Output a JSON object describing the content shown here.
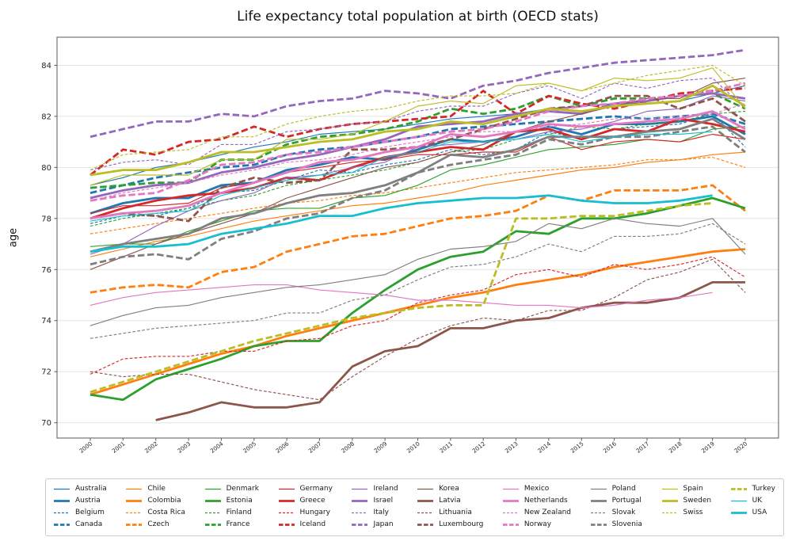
{
  "figure": {
    "title": "Life expectancy total population at birth (OECD stats)",
    "background": "#ffffff",
    "grid_color": "#e4e4e4",
    "spine_color": "#5a5a5a",
    "text_color": "#262626"
  },
  "chart_data": {
    "type": "line",
    "title": "Life expectancy total population at birth (OECD stats)",
    "xlabel": "",
    "ylabel": "age",
    "x": [
      2000,
      2001,
      2002,
      2003,
      2004,
      2005,
      2006,
      2007,
      2008,
      2009,
      2010,
      2011,
      2012,
      2013,
      2014,
      2015,
      2016,
      2017,
      2018,
      2019,
      2020
    ],
    "yticks": [
      70,
      72,
      74,
      76,
      78,
      80,
      82,
      84
    ],
    "ylim": [
      69.4,
      85.1
    ],
    "grid": "horizontal",
    "legend_position": "bottom",
    "legend_columns": [
      4,
      4,
      4,
      4,
      4,
      4,
      4,
      4,
      3,
      3
    ],
    "series": [
      {
        "name": "Australia",
        "color": "#1f77b4",
        "weight": "thin",
        "dash": "solid",
        "values": [
          79.3,
          79.6,
          80.0,
          80.2,
          80.5,
          80.8,
          81.0,
          81.3,
          81.4,
          81.5,
          81.7,
          81.9,
          82.0,
          82.1,
          82.3,
          82.4,
          82.5,
          82.5,
          82.6,
          82.9,
          83.2
        ]
      },
      {
        "name": "Austria",
        "color": "#1f77b4",
        "weight": "thick",
        "dash": "solid",
        "values": [
          78.2,
          78.6,
          78.8,
          78.8,
          79.3,
          79.4,
          79.9,
          80.1,
          80.4,
          80.3,
          80.7,
          81.1,
          81.0,
          81.2,
          81.6,
          81.3,
          81.7,
          81.7,
          81.8,
          82.0,
          81.3
        ]
      },
      {
        "name": "Belgium",
        "color": "#1f77b4",
        "weight": "thin",
        "dash": "dashed",
        "values": [
          77.8,
          78.1,
          78.1,
          78.4,
          79.0,
          79.1,
          79.5,
          79.9,
          79.8,
          80.1,
          80.3,
          80.7,
          80.5,
          80.7,
          81.4,
          81.1,
          81.5,
          81.6,
          81.7,
          82.1,
          80.8
        ]
      },
      {
        "name": "Canada",
        "color": "#1f77b4",
        "weight": "thick",
        "dash": "dashed",
        "values": [
          79.0,
          79.3,
          79.6,
          79.8,
          80.0,
          80.1,
          80.5,
          80.7,
          80.8,
          81.0,
          81.2,
          81.5,
          81.6,
          81.7,
          81.8,
          81.9,
          82.0,
          81.9,
          82.0,
          82.1,
          81.7
        ]
      },
      {
        "name": "Chile",
        "color": "#ff7f0e",
        "weight": "thin",
        "dash": "solid",
        "values": [
          76.5,
          76.8,
          77.1,
          77.3,
          77.6,
          77.9,
          78.1,
          78.3,
          78.5,
          78.6,
          78.8,
          79.0,
          79.3,
          79.5,
          79.7,
          79.9,
          80.0,
          80.2,
          80.3,
          80.5,
          80.6
        ]
      },
      {
        "name": "Colombia",
        "color": "#ff7f0e",
        "weight": "thick",
        "dash": "solid",
        "values": [
          71.1,
          71.5,
          71.9,
          72.3,
          72.7,
          73.0,
          73.4,
          73.7,
          74.0,
          74.3,
          74.6,
          74.9,
          75.1,
          75.4,
          75.6,
          75.8,
          76.1,
          76.3,
          76.5,
          76.7,
          76.8
        ]
      },
      {
        "name": "Costa Rica",
        "color": "#ff7f0e",
        "weight": "thin",
        "dash": "dashed",
        "values": [
          77.4,
          77.6,
          77.8,
          78.0,
          78.2,
          78.4,
          78.6,
          78.7,
          78.9,
          79.0,
          79.2,
          79.4,
          79.6,
          79.8,
          79.9,
          80.0,
          80.1,
          80.3,
          80.3,
          80.4,
          80.0
        ]
      },
      {
        "name": "Czech",
        "color": "#ff7f0e",
        "weight": "thick",
        "dash": "dashed",
        "values": [
          75.1,
          75.3,
          75.4,
          75.3,
          75.9,
          76.1,
          76.7,
          77.0,
          77.3,
          77.4,
          77.7,
          78.0,
          78.1,
          78.3,
          78.9,
          78.7,
          79.1,
          79.1,
          79.1,
          79.3,
          78.3
        ]
      },
      {
        "name": "Denmark",
        "color": "#2ca02c",
        "weight": "thin",
        "dash": "solid",
        "values": [
          76.9,
          77.0,
          77.0,
          77.5,
          77.9,
          78.3,
          78.4,
          78.4,
          78.8,
          78.9,
          79.3,
          79.9,
          80.1,
          80.4,
          80.7,
          80.8,
          80.9,
          81.1,
          81.0,
          81.5,
          81.6
        ]
      },
      {
        "name": "Estonia",
        "color": "#2ca02c",
        "weight": "thick",
        "dash": "solid",
        "values": [
          71.1,
          70.9,
          71.7,
          72.1,
          72.5,
          73.0,
          73.2,
          73.2,
          74.3,
          75.2,
          76.0,
          76.5,
          76.7,
          77.5,
          77.4,
          78.0,
          78.0,
          78.2,
          78.5,
          78.8,
          78.4
        ]
      },
      {
        "name": "Finland",
        "color": "#2ca02c",
        "weight": "thin",
        "dash": "dashed",
        "values": [
          77.7,
          78.0,
          78.2,
          78.4,
          78.7,
          78.9,
          79.3,
          79.5,
          79.7,
          79.9,
          80.2,
          80.6,
          80.7,
          81.1,
          81.3,
          81.6,
          81.5,
          81.7,
          81.8,
          82.1,
          82.2
        ]
      },
      {
        "name": "France",
        "color": "#2ca02c",
        "weight": "thick",
        "dash": "dashed",
        "values": [
          79.2,
          79.3,
          79.4,
          79.4,
          80.3,
          80.3,
          80.9,
          81.2,
          81.3,
          81.5,
          81.8,
          82.3,
          82.1,
          82.3,
          82.8,
          82.4,
          82.7,
          82.7,
          82.8,
          82.9,
          82.3
        ]
      },
      {
        "name": "Germany",
        "color": "#d62728",
        "weight": "thin",
        "dash": "solid",
        "values": [
          78.2,
          78.5,
          78.5,
          78.6,
          79.2,
          79.4,
          79.8,
          80.0,
          80.2,
          80.3,
          80.5,
          80.5,
          80.6,
          80.6,
          81.2,
          80.7,
          81.0,
          81.1,
          81.0,
          81.3,
          81.1
        ]
      },
      {
        "name": "Greece",
        "color": "#d62728",
        "weight": "thick",
        "dash": "solid",
        "values": [
          78.0,
          78.4,
          78.7,
          78.9,
          79.0,
          79.2,
          79.6,
          79.5,
          80.0,
          80.4,
          80.6,
          80.8,
          80.7,
          81.4,
          81.5,
          81.1,
          81.5,
          81.4,
          81.9,
          81.7,
          81.4
        ]
      },
      {
        "name": "Hungary",
        "color": "#d62728",
        "weight": "thin",
        "dash": "dashed",
        "values": [
          71.9,
          72.5,
          72.6,
          72.6,
          72.8,
          72.8,
          73.2,
          73.3,
          73.8,
          74.0,
          74.7,
          75.0,
          75.2,
          75.8,
          76.0,
          75.7,
          76.2,
          76.0,
          76.2,
          76.5,
          75.7
        ]
      },
      {
        "name": "Iceland",
        "color": "#d62728",
        "weight": "thick",
        "dash": "dashed",
        "values": [
          79.7,
          80.7,
          80.5,
          81.0,
          81.1,
          81.6,
          81.2,
          81.5,
          81.7,
          81.8,
          81.9,
          82.0,
          83.0,
          82.1,
          82.8,
          82.5,
          82.3,
          82.6,
          82.9,
          83.0,
          83.1
        ]
      },
      {
        "name": "Ireland",
        "color": "#9467bd",
        "weight": "thin",
        "dash": "solid",
        "values": [
          76.6,
          77.0,
          77.7,
          78.3,
          78.7,
          79.0,
          79.6,
          79.7,
          80.0,
          80.2,
          80.8,
          80.9,
          81.0,
          81.1,
          81.4,
          81.5,
          81.8,
          82.2,
          82.3,
          82.8,
          82.6
        ]
      },
      {
        "name": "Israel",
        "color": "#9467bd",
        "weight": "thick",
        "dash": "solid",
        "values": [
          78.8,
          79.1,
          79.3,
          79.4,
          79.8,
          80.0,
          80.3,
          80.5,
          80.8,
          81.1,
          81.6,
          81.7,
          81.8,
          82.1,
          82.2,
          82.1,
          82.5,
          82.6,
          82.8,
          82.9,
          82.7
        ]
      },
      {
        "name": "Italy",
        "color": "#9467bd",
        "weight": "thin",
        "dash": "dashed",
        "values": [
          79.9,
          80.2,
          80.3,
          80.1,
          80.9,
          80.9,
          81.4,
          81.5,
          81.7,
          81.8,
          82.2,
          82.4,
          82.4,
          82.9,
          83.2,
          82.7,
          83.3,
          83.1,
          83.4,
          83.5,
          82.3
        ]
      },
      {
        "name": "Japan",
        "color": "#9467bd",
        "weight": "thick",
        "dash": "dashed",
        "values": [
          81.2,
          81.5,
          81.8,
          81.8,
          82.1,
          82.0,
          82.4,
          82.6,
          82.7,
          83.0,
          82.9,
          82.7,
          83.2,
          83.4,
          83.7,
          83.9,
          84.1,
          84.2,
          84.3,
          84.4,
          84.6
        ]
      },
      {
        "name": "Korea",
        "color": "#8c564b",
        "weight": "thin",
        "dash": "solid",
        "values": [
          76.0,
          76.5,
          77.0,
          77.4,
          77.8,
          78.2,
          78.8,
          79.2,
          79.6,
          80.0,
          80.2,
          80.6,
          80.9,
          81.4,
          81.8,
          82.1,
          82.4,
          82.7,
          82.7,
          83.3,
          83.5
        ]
      },
      {
        "name": "Latvia",
        "color": "#8c564b",
        "weight": "thick",
        "dash": "solid",
        "values": [
          null,
          null,
          70.1,
          70.4,
          70.8,
          70.6,
          70.6,
          70.8,
          72.2,
          72.8,
          73.0,
          73.7,
          73.7,
          74.0,
          74.1,
          74.5,
          74.7,
          74.7,
          74.9,
          75.5,
          75.5
        ]
      },
      {
        "name": "Lithuania",
        "color": "#8c564b",
        "weight": "thin",
        "dash": "dashed",
        "values": [
          72.0,
          71.8,
          71.9,
          71.9,
          71.6,
          71.3,
          71.1,
          70.9,
          71.8,
          72.6,
          73.3,
          73.8,
          74.1,
          74.0,
          74.4,
          74.4,
          74.9,
          75.6,
          75.9,
          76.4,
          75.1
        ]
      },
      {
        "name": "Luxembourg",
        "color": "#8c564b",
        "weight": "thick",
        "dash": "dashed",
        "values": [
          78.0,
          78.2,
          78.1,
          77.9,
          79.2,
          79.6,
          79.4,
          79.5,
          80.7,
          80.7,
          80.8,
          81.1,
          81.5,
          81.9,
          82.3,
          82.4,
          82.8,
          82.8,
          82.3,
          82.7,
          81.8
        ]
      },
      {
        "name": "Mexico",
        "color": "#e377c2",
        "weight": "thin",
        "dash": "solid",
        "values": [
          74.6,
          74.9,
          75.1,
          75.2,
          75.3,
          75.4,
          75.4,
          75.2,
          75.1,
          75.0,
          74.8,
          74.8,
          74.7,
          74.6,
          74.6,
          74.5,
          74.6,
          74.8,
          74.9,
          75.1,
          null
        ]
      },
      {
        "name": "Netherlands",
        "color": "#e377c2",
        "weight": "thick",
        "dash": "solid",
        "values": [
          78.0,
          78.2,
          78.3,
          78.5,
          79.0,
          79.4,
          79.8,
          80.2,
          80.3,
          80.6,
          80.8,
          81.3,
          81.2,
          81.4,
          81.7,
          81.6,
          81.7,
          81.8,
          81.9,
          82.2,
          81.5
        ]
      },
      {
        "name": "New Zealand",
        "color": "#e377c2",
        "weight": "thin",
        "dash": "dashed",
        "values": [
          78.7,
          79.0,
          79.2,
          79.4,
          79.7,
          79.9,
          80.2,
          80.3,
          80.5,
          80.8,
          81.0,
          81.2,
          81.4,
          81.4,
          81.6,
          81.7,
          81.9,
          81.9,
          82.0,
          82.1,
          82.5
        ]
      },
      {
        "name": "Norway",
        "color": "#e377c2",
        "weight": "thick",
        "dash": "dashed",
        "values": [
          78.7,
          78.9,
          79.0,
          79.5,
          80.1,
          80.2,
          80.5,
          80.6,
          80.8,
          81.0,
          81.2,
          81.4,
          81.5,
          81.8,
          82.2,
          82.4,
          82.5,
          82.7,
          82.8,
          83.0,
          83.3
        ]
      },
      {
        "name": "Poland",
        "color": "#7f7f7f",
        "weight": "thin",
        "dash": "solid",
        "values": [
          73.8,
          74.2,
          74.5,
          74.6,
          74.9,
          75.1,
          75.3,
          75.4,
          75.6,
          75.8,
          76.4,
          76.8,
          76.9,
          77.1,
          77.8,
          77.6,
          78.0,
          77.8,
          77.7,
          78.0,
          76.6
        ]
      },
      {
        "name": "Portugal",
        "color": "#7f7f7f",
        "weight": "thick",
        "dash": "solid",
        "values": [
          76.7,
          77.0,
          77.2,
          77.4,
          78.0,
          78.2,
          78.6,
          78.9,
          79.0,
          79.3,
          79.8,
          80.5,
          80.4,
          80.7,
          81.2,
          81.2,
          81.2,
          81.4,
          81.5,
          81.9,
          81.1
        ]
      },
      {
        "name": "Slovak",
        "color": "#7f7f7f",
        "weight": "thin",
        "dash": "dashed",
        "values": [
          73.3,
          73.5,
          73.7,
          73.8,
          73.9,
          74.0,
          74.3,
          74.3,
          74.8,
          75.0,
          75.6,
          76.1,
          76.2,
          76.5,
          77.0,
          76.7,
          77.3,
          77.3,
          77.4,
          77.8,
          77.0
        ]
      },
      {
        "name": "Slovenia",
        "color": "#7f7f7f",
        "weight": "thick",
        "dash": "dashed",
        "values": [
          76.2,
          76.5,
          76.6,
          76.4,
          77.2,
          77.5,
          78.0,
          78.2,
          78.8,
          79.1,
          79.8,
          80.1,
          80.3,
          80.5,
          81.1,
          80.9,
          81.2,
          81.2,
          81.4,
          81.6,
          80.6
        ]
      },
      {
        "name": "Spain",
        "color": "#bcbd22",
        "weight": "thin",
        "dash": "solid",
        "values": [
          79.3,
          79.7,
          79.7,
          79.7,
          80.3,
          80.3,
          81.1,
          81.1,
          81.3,
          81.8,
          82.4,
          82.6,
          82.5,
          83.2,
          83.3,
          83.0,
          83.5,
          83.4,
          83.5,
          83.9,
          82.3
        ]
      },
      {
        "name": "Sweden",
        "color": "#bcbd22",
        "weight": "thick",
        "dash": "solid",
        "values": [
          79.7,
          79.9,
          79.9,
          80.2,
          80.6,
          80.6,
          80.8,
          81.0,
          81.1,
          81.4,
          81.5,
          81.8,
          81.7,
          82.0,
          82.3,
          82.2,
          82.4,
          82.5,
          82.6,
          83.2,
          82.4
        ]
      },
      {
        "name": "Swiss",
        "color": "#bcbd22",
        "weight": "thin",
        "dash": "dashed",
        "values": [
          79.9,
          80.5,
          80.6,
          80.7,
          81.2,
          81.2,
          81.7,
          82.0,
          82.2,
          82.3,
          82.6,
          82.8,
          82.8,
          82.9,
          83.3,
          83.0,
          83.3,
          83.6,
          83.8,
          84.0,
          83.2
        ]
      },
      {
        "name": "Turkey",
        "color": "#bcbd22",
        "weight": "thick",
        "dash": "dashed",
        "values": [
          71.2,
          71.6,
          72.0,
          72.4,
          72.8,
          73.2,
          73.5,
          73.8,
          74.1,
          74.3,
          74.5,
          74.6,
          74.6,
          78.0,
          78.0,
          78.1,
          78.1,
          78.3,
          78.5,
          78.6,
          null
        ]
      },
      {
        "name": "UK",
        "color": "#17becf",
        "weight": "thin",
        "dash": "solid",
        "values": [
          77.9,
          78.1,
          78.2,
          78.3,
          78.9,
          79.2,
          79.5,
          79.7,
          79.8,
          80.4,
          80.6,
          81.0,
          81.0,
          81.1,
          81.3,
          81.0,
          81.2,
          81.3,
          81.3,
          81.4,
          null
        ]
      },
      {
        "name": "USA",
        "color": "#17becf",
        "weight": "thick",
        "dash": "solid",
        "values": [
          76.7,
          76.9,
          76.9,
          77.0,
          77.4,
          77.6,
          77.8,
          78.1,
          78.1,
          78.4,
          78.6,
          78.7,
          78.8,
          78.8,
          78.9,
          78.7,
          78.6,
          78.6,
          78.7,
          78.9,
          null
        ]
      }
    ]
  }
}
